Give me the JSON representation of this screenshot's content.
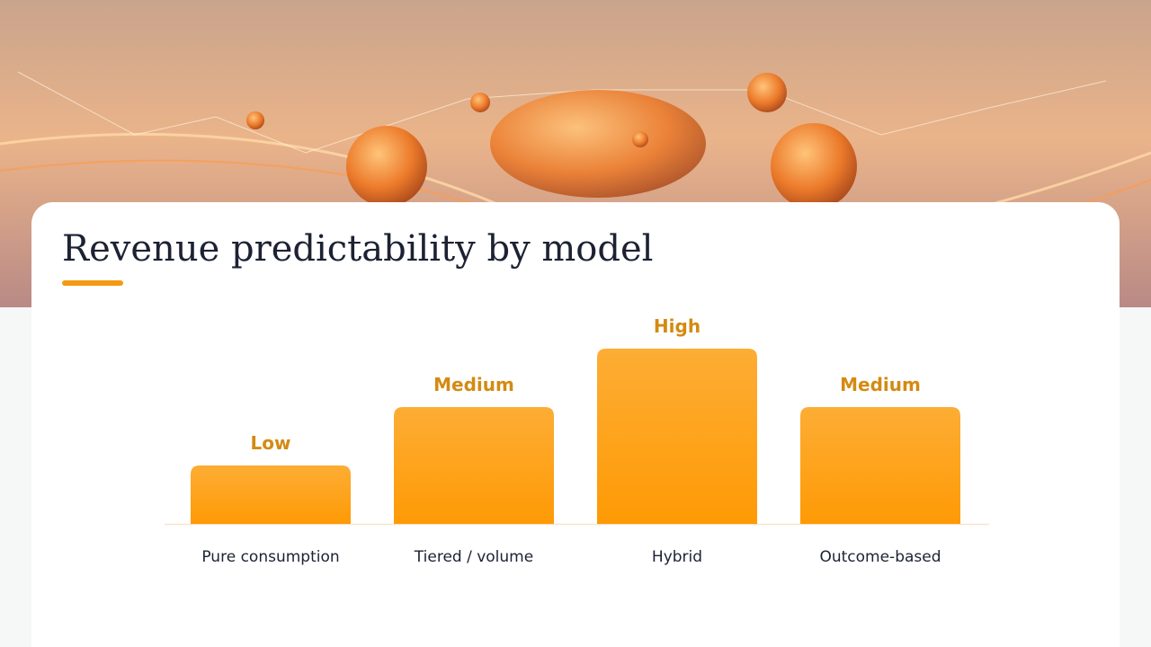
{
  "chart_data": {
    "type": "bar",
    "title": "Revenue predictability by model",
    "categories": [
      "Pure consumption",
      "Tiered / volume",
      "Hybrid",
      "Outcome-based"
    ],
    "values": [
      1,
      2,
      3,
      2
    ],
    "value_labels": [
      "Low",
      "Medium",
      "High",
      "Medium"
    ],
    "color": "#fea41c"
  }
}
